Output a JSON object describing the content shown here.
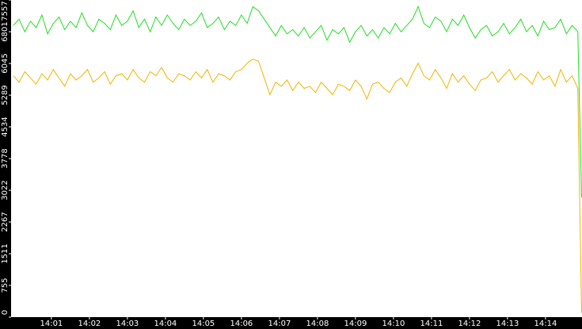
{
  "chart_data": {
    "type": "line",
    "x": [
      0,
      0.15,
      0.3,
      0.45,
      0.6,
      0.75,
      0.9,
      1.05,
      1.2,
      1.35,
      1.5,
      1.65,
      1.8,
      1.95,
      2.1,
      2.25,
      2.4,
      2.55,
      2.7,
      2.85,
      3,
      3.15,
      3.3,
      3.45,
      3.6,
      3.75,
      3.9,
      4.05,
      4.2,
      4.35,
      4.5,
      4.65,
      4.8,
      4.95,
      5.1,
      5.25,
      5.4,
      5.55,
      5.7,
      5.85,
      6,
      6.15,
      6.3,
      6.45,
      6.6,
      6.75,
      6.9,
      7.05,
      7.2,
      7.35,
      7.5,
      7.65,
      7.8,
      7.95,
      8.1,
      8.25,
      8.4,
      8.55,
      8.7,
      8.85,
      9,
      9.15,
      9.3,
      9.45,
      9.6,
      9.75,
      9.9,
      10.05,
      10.2,
      10.35,
      10.5,
      10.65,
      10.8,
      10.95,
      11.1,
      11.25,
      11.4,
      11.55,
      11.7,
      11.85,
      12,
      12.15,
      12.3,
      12.45,
      12.6,
      12.75,
      12.9,
      13.05,
      13.2,
      13.35,
      13.5,
      13.65,
      13.8,
      13.95,
      14.1,
      14.25,
      14.4,
      14.55,
      14.7,
      14.85,
      14.95
    ],
    "series": [
      {
        "color": "#22dd22",
        "values": [
          6950,
          7100,
          6800,
          7050,
          6900,
          7200,
          6750,
          7000,
          7150,
          6850,
          7050,
          6900,
          7250,
          6950,
          6800,
          7100,
          7000,
          6850,
          7200,
          6950,
          7050,
          7300,
          6900,
          7100,
          6800,
          7150,
          6950,
          7200,
          7000,
          6850,
          7100,
          6950,
          7050,
          7250,
          6900,
          7000,
          7150,
          6850,
          7050,
          6950,
          7200,
          7000,
          7400,
          7300,
          7100,
          6900,
          6700,
          6950,
          6750,
          6850,
          6700,
          6900,
          6650,
          6800,
          6950,
          6600,
          6850,
          6750,
          6900,
          6550,
          6800,
          6950,
          6700,
          6850,
          6650,
          6900,
          6750,
          7000,
          6800,
          6950,
          7100,
          7400,
          7000,
          6900,
          7150,
          7050,
          6800,
          7100,
          6950,
          7200,
          6900,
          6650,
          6850,
          6950,
          6700,
          6800,
          7000,
          6750,
          6900,
          7100,
          6800,
          6950,
          6700,
          7050,
          6850,
          6900,
          7100,
          6750,
          6950,
          6800,
          2850
        ]
      },
      {
        "color": "#f0b400",
        "values": [
          5750,
          5600,
          5850,
          5700,
          5550,
          5800,
          5650,
          5900,
          5700,
          5500,
          5800,
          5650,
          5750,
          5900,
          5600,
          5700,
          5850,
          5550,
          5750,
          5800,
          5650,
          5900,
          5700,
          5600,
          5850,
          5750,
          5950,
          5700,
          5600,
          5800,
          5750,
          5650,
          5850,
          5700,
          5900,
          5600,
          5800,
          5750,
          5650,
          5850,
          5900,
          6050,
          6150,
          6100,
          5700,
          5300,
          5600,
          5500,
          5650,
          5400,
          5600,
          5450,
          5500,
          5350,
          5600,
          5450,
          5300,
          5550,
          5500,
          5400,
          5650,
          5500,
          5200,
          5550,
          5600,
          5450,
          5350,
          5600,
          5700,
          5500,
          5800,
          6050,
          5750,
          5650,
          5900,
          5700,
          5450,
          5800,
          5600,
          5750,
          5550,
          5400,
          5650,
          5700,
          5850,
          5600,
          5750,
          5900,
          5650,
          5800,
          5700,
          5550,
          5850,
          5650,
          5750,
          5500,
          5900,
          5600,
          5750,
          5450,
          100
        ]
      }
    ],
    "xlim": [
      -0.06,
      14.96
    ],
    "xticks": [
      {
        "value": 1,
        "label": "14:01"
      },
      {
        "value": 2,
        "label": "14:02"
      },
      {
        "value": 3,
        "label": "14:03"
      },
      {
        "value": 4,
        "label": "14:04"
      },
      {
        "value": 5,
        "label": "14:05"
      },
      {
        "value": 6,
        "label": "14:06"
      },
      {
        "value": 7,
        "label": "14:07"
      },
      {
        "value": 8,
        "label": "14:08"
      },
      {
        "value": 9,
        "label": "14:09"
      },
      {
        "value": 10,
        "label": "14:10"
      },
      {
        "value": 11,
        "label": "14:11"
      },
      {
        "value": 12,
        "label": "14:12"
      },
      {
        "value": 13,
        "label": "14:13"
      },
      {
        "value": 14,
        "label": "14:14"
      }
    ],
    "ylim": [
      0,
      7557
    ],
    "yticks": [
      0,
      755,
      1511,
      2267,
      3022,
      3778,
      4534,
      5289,
      6045,
      6801,
      7557
    ]
  }
}
